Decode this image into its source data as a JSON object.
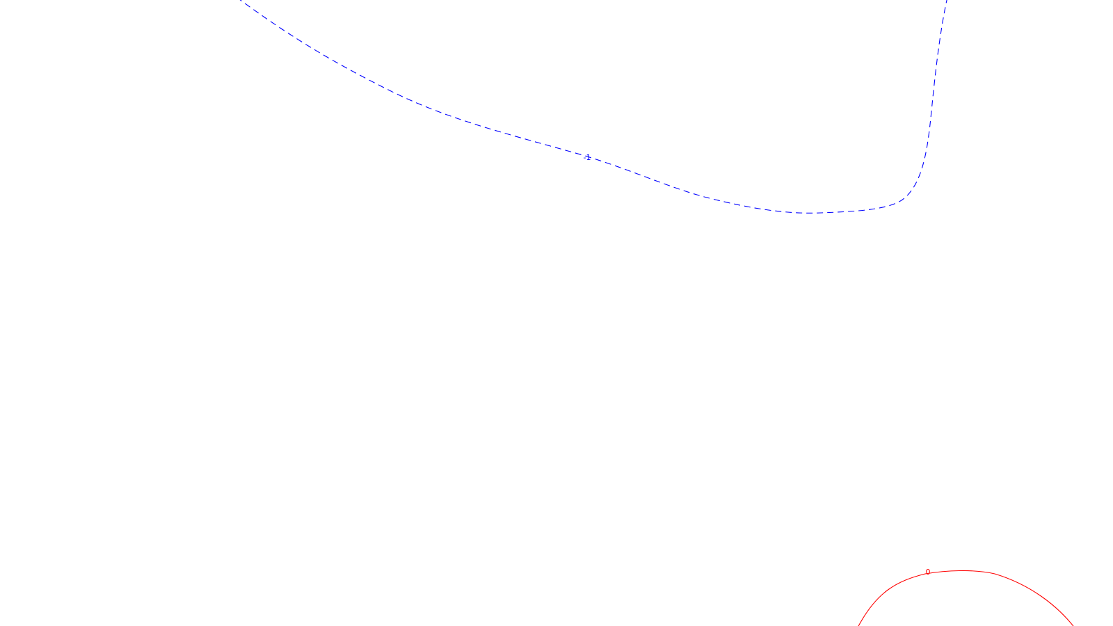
{
  "chart_data": {
    "type": "contour",
    "title": "",
    "xlabel": "",
    "ylabel": "",
    "grid": false,
    "legend": "none",
    "contours": [
      {
        "level": -1,
        "label": "-1",
        "color": "#0000ff",
        "style": "dashed"
      },
      {
        "level": 0,
        "label": "0",
        "color": "#ff0000",
        "style": "solid"
      }
    ]
  }
}
